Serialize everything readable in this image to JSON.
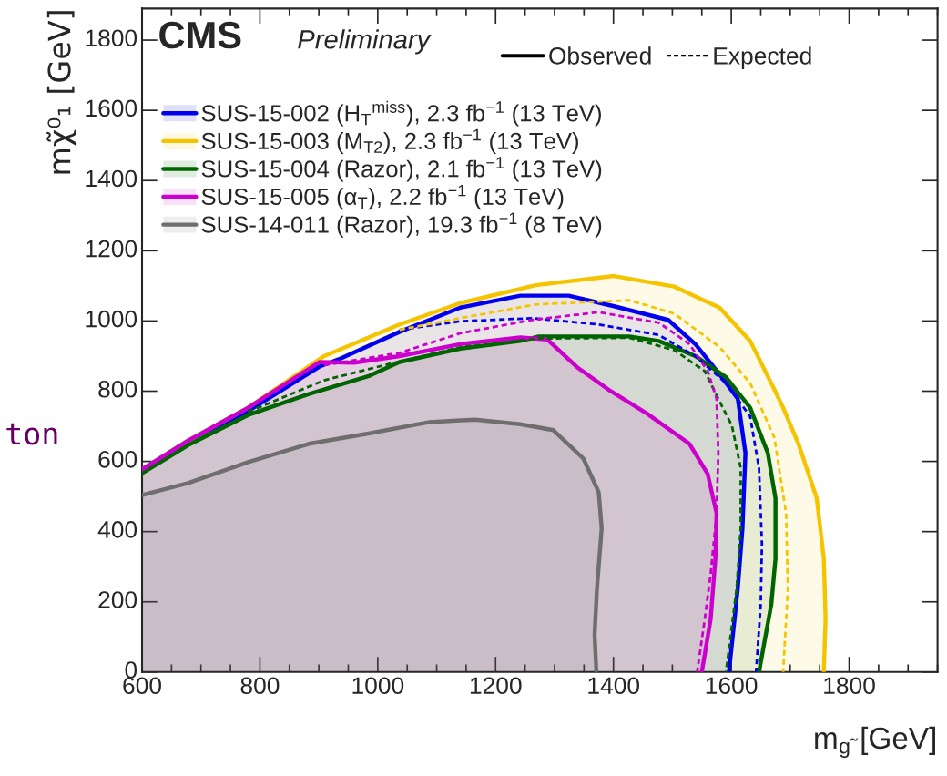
{
  "chart_data": {
    "type": "line",
    "xlabel": "m$_{g̃}$ [GeV]",
    "ylabel": "mχ̃⁰₁ [GeV]",
    "xlim": [
      600,
      1950
    ],
    "xticks": [
      600,
      800,
      1000,
      1200,
      1400,
      1600,
      1800
    ],
    "ylim": [
      0,
      1890
    ],
    "yticks": [
      0,
      200,
      400,
      600,
      800,
      1000,
      1200,
      1400,
      1600,
      1800
    ],
    "legend": "top left",
    "annotations": [
      "CMS",
      "Preliminary",
      "Observed",
      "Expected",
      "ton"
    ],
    "series": [
      {
        "name": "SUS-15-002 (H$_{T}$$^{miss}$), 2.3 fb$^{−1}$ (13 TeV)",
        "type": "area",
        "line_style": "solid",
        "color": "#0000ee",
        "x": [
          600,
          678,
          780,
          901,
          934,
          1037,
          1140,
          1242,
          1324,
          1401,
          1493,
          1539,
          1580,
          1611,
          1624,
          1619,
          1611,
          1596
        ],
        "values": [
          577,
          659,
          743,
          870,
          891,
          969,
          1038,
          1072,
          1072,
          1042,
          1003,
          934,
          848,
          779,
          624,
          409,
          237,
          0
        ]
      },
      {
        "name": "SUS-15-003 (M$_{T2}$), 2.3 fb$^{−1}$ (13 TeV)",
        "type": "area",
        "line_style": "solid",
        "color": "#f5c400",
        "x": [
          600,
          678,
          780,
          909,
          1037,
          1140,
          1268,
          1401,
          1503,
          1580,
          1632,
          1673,
          1688,
          1714,
          1745,
          1757,
          1760,
          1757
        ],
        "values": [
          577,
          659,
          753,
          900,
          990,
          1051,
          1102,
          1128,
          1098,
          1038,
          943,
          805,
          753,
          650,
          495,
          323,
          151,
          0
        ]
      },
      {
        "name": "SUS-15-004 (Razor), 2.1 fb$^{−1}$ (13 TeV)",
        "type": "area",
        "line_style": "solid",
        "color": "#006400",
        "x": [
          600,
          678,
          780,
          883,
          986,
          1037,
          1140,
          1242,
          1273,
          1427,
          1477,
          1539,
          1591,
          1632,
          1662,
          1675,
          1675,
          1668,
          1647
        ],
        "values": [
          566,
          646,
          732,
          792,
          844,
          883,
          921,
          943,
          956,
          956,
          943,
          900,
          840,
          753,
          624,
          495,
          323,
          194,
          0
        ]
      },
      {
        "name": "SUS-15-005 (α$_{T}$), 2.2 fb$^{−1}$ (13 TeV)",
        "type": "area",
        "line_style": "solid",
        "color": "#cc00cc",
        "x": [
          600,
          678,
          780,
          901,
          960,
          1037,
          1140,
          1242,
          1288,
          1340,
          1391,
          1457,
          1529,
          1560,
          1575,
          1573,
          1565,
          1550
        ],
        "values": [
          577,
          659,
          753,
          883,
          881,
          900,
          934,
          953,
          947,
          866,
          805,
          736,
          650,
          564,
          452,
          323,
          151,
          0
        ]
      },
      {
        "name": "SUS-14-011 (Razor), 19.3 fb$^{−1}$ (8 TeV)",
        "type": "area",
        "line_style": "solid",
        "color": "#6e6e6e",
        "x": [
          600,
          678,
          780,
          883,
          986,
          1088,
          1165,
          1242,
          1298,
          1349,
          1375,
          1380,
          1372,
          1368,
          1371
        ],
        "values": [
          504,
          538,
          598,
          650,
          680,
          712,
          719,
          706,
          689,
          608,
          512,
          409,
          237,
          107,
          0
        ]
      },
      {
        "type": "line",
        "line_style": "dashed",
        "color": "#0000ee",
        "x": [
          1037,
          1140,
          1262,
          1375,
          1477,
          1539,
          1591,
          1632,
          1647,
          1652,
          1650,
          1642
        ],
        "values": [
          975,
          999,
          1008,
          990,
          960,
          900,
          823,
          728,
          581,
          366,
          194,
          0
        ]
      },
      {
        "type": "line",
        "line_style": "dashed",
        "color": "#f5c400",
        "x": [
          1037,
          1140,
          1268,
          1427,
          1503,
          1580,
          1632,
          1673,
          1693,
          1696,
          1688
        ],
        "values": [
          975,
          1008,
          1047,
          1059,
          1021,
          926,
          823,
          668,
          452,
          237,
          0
        ]
      },
      {
        "type": "line",
        "line_style": "dashed",
        "color": "#006400",
        "x": [
          780,
          909,
          1011,
          1140,
          1273,
          1427,
          1503,
          1555,
          1575,
          1601,
          1616,
          1616,
          1609,
          1591
        ],
        "values": [
          741,
          831,
          874,
          925,
          950,
          952,
          917,
          857,
          788,
          702,
          581,
          409,
          237,
          0
        ]
      },
      {
        "type": "line",
        "line_style": "dashed",
        "color": "#cc00cc",
        "x": [
          909,
          1037,
          1140,
          1262,
          1375,
          1477,
          1529,
          1560,
          1575,
          1578,
          1575,
          1565,
          1555,
          1542
        ],
        "values": [
          874,
          909,
          965,
          1003,
          1025,
          995,
          934,
          857,
          779,
          624,
          452,
          280,
          151,
          0
        ]
      }
    ]
  }
}
